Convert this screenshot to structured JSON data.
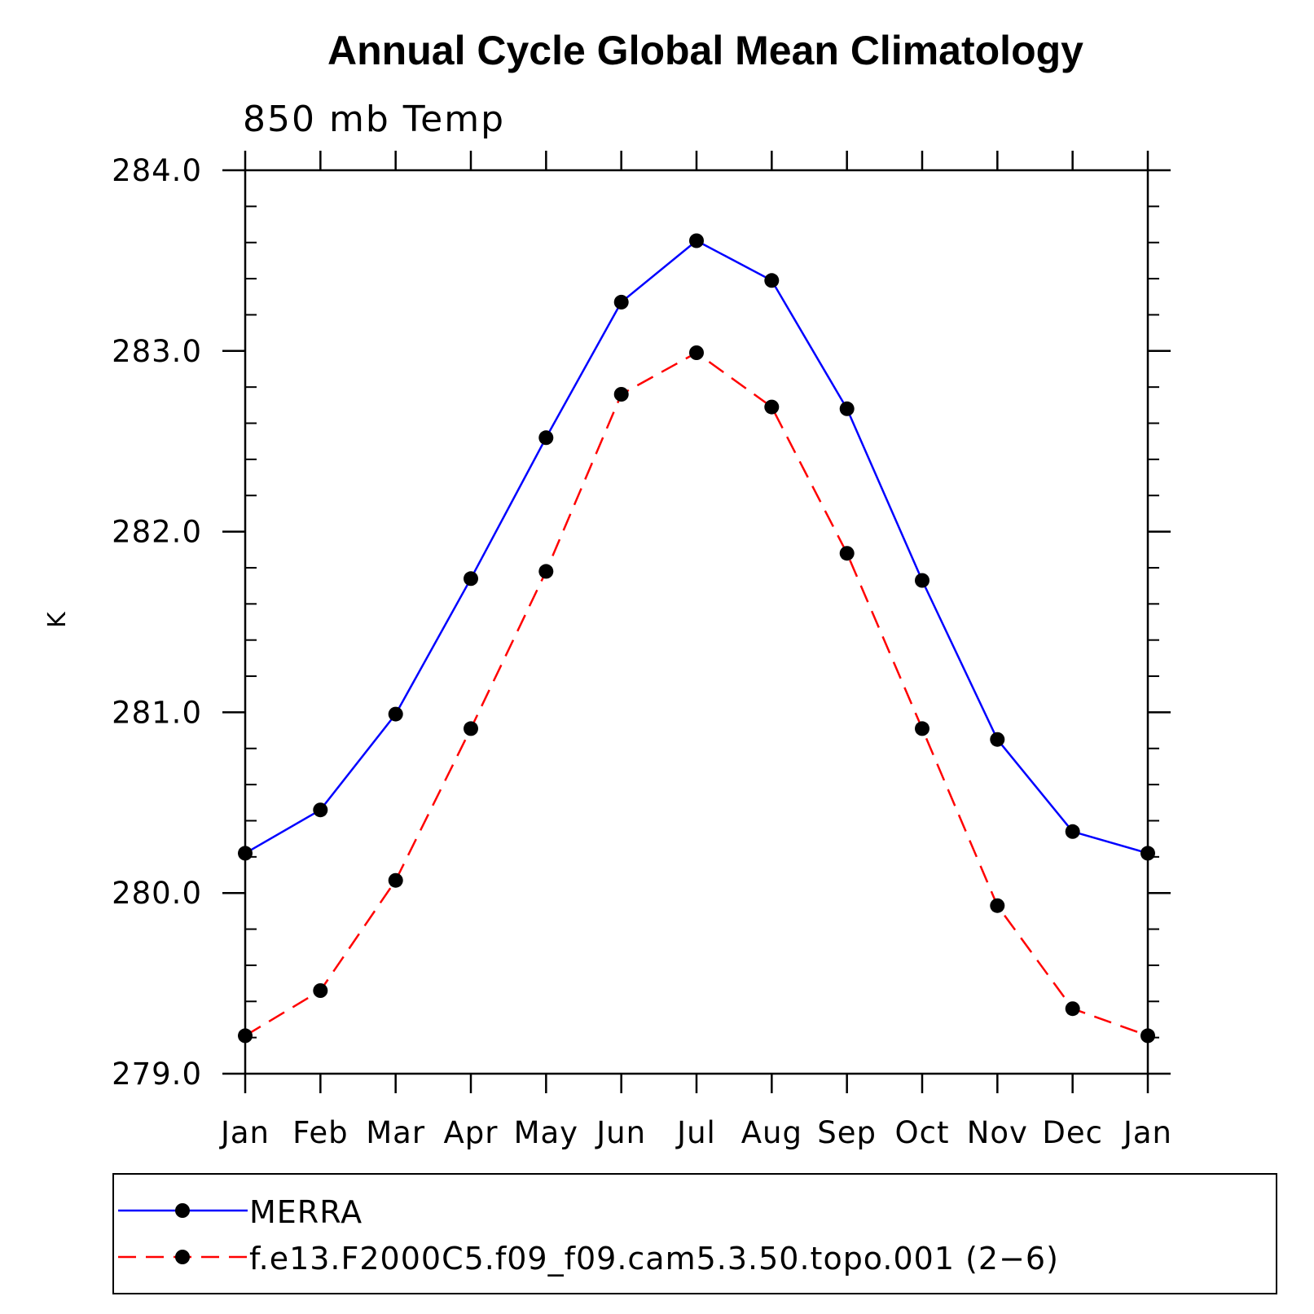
{
  "chart_data": {
    "type": "line",
    "title": "Annual Cycle Global Mean Climatology",
    "subtitle": "850 mb Temp",
    "xlabel": "",
    "ylabel": "K",
    "categories": [
      "Jan",
      "Feb",
      "Mar",
      "Apr",
      "May",
      "Jun",
      "Jul",
      "Aug",
      "Sep",
      "Oct",
      "Nov",
      "Dec",
      "Jan"
    ],
    "ylim": [
      279.0,
      284.0
    ],
    "yticks": [
      279.0,
      280.0,
      281.0,
      282.0,
      283.0,
      284.0
    ],
    "ytick_labels": [
      "279.0",
      "280.0",
      "281.0",
      "282.0",
      "283.0",
      "284.0"
    ],
    "yminor_step": 0.2,
    "legend_position": "bottom",
    "series": [
      {
        "name": "MERRA",
        "color": "#0000ff",
        "dash": "solid",
        "marker": "filled-circle",
        "values": [
          280.22,
          280.46,
          280.99,
          281.74,
          282.52,
          283.27,
          283.61,
          283.39,
          282.68,
          281.73,
          280.85,
          280.34,
          280.22
        ]
      },
      {
        "name": "f.e13.F2000C5.f09_f09.cam5.3.50.topo.001 (2−6)",
        "color": "#ff0000",
        "dash": "dashed",
        "marker": "filled-circle",
        "values": [
          279.21,
          279.46,
          280.07,
          280.91,
          281.78,
          282.76,
          282.99,
          282.69,
          281.88,
          280.91,
          279.93,
          279.36,
          279.21
        ]
      }
    ]
  }
}
